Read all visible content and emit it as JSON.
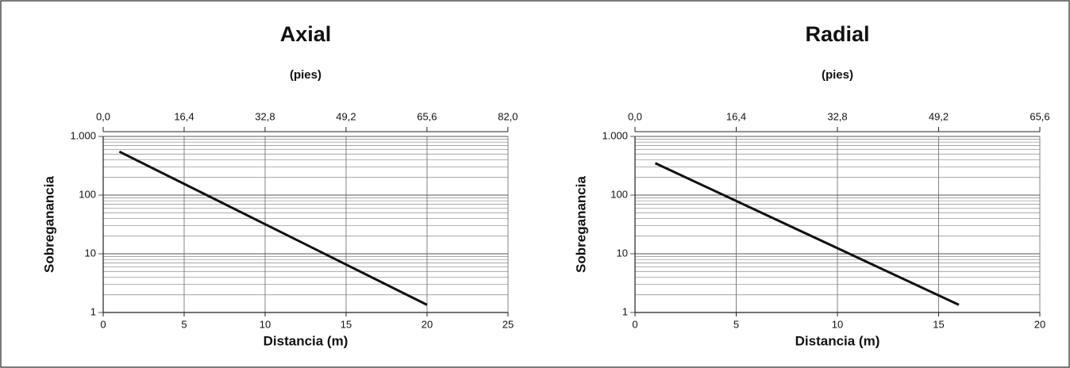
{
  "chart_data": [
    {
      "type": "line",
      "title": "Axial",
      "x2_label": "(pies)",
      "xlabel": "Distancia (m)",
      "ylabel": "Sobreganancia",
      "x": [
        1,
        20
      ],
      "series": [
        {
          "color": "#111111",
          "values": [
            550,
            1.35
          ]
        }
      ],
      "xlim": [
        0,
        25
      ],
      "xticks": [
        0,
        5,
        10,
        15,
        20,
        25
      ],
      "x2lim": [
        0,
        82.02
      ],
      "x2ticks": [
        {
          "value": 0,
          "label": "0,0"
        },
        {
          "value": 16.4,
          "label": "16,4"
        },
        {
          "value": 32.8,
          "label": "32,8"
        },
        {
          "value": 49.2,
          "label": "49,2"
        },
        {
          "value": 65.6,
          "label": "65,6"
        },
        {
          "value": 82,
          "label": "82,0"
        }
      ],
      "ylim": [
        1,
        1000
      ],
      "yticks": [
        {
          "value": 1000,
          "label": "1.000"
        },
        100,
        10,
        1
      ],
      "log_y": true,
      "grid": true,
      "minor_grid": true
    },
    {
      "type": "line",
      "title": "Radial",
      "x2_label": "(pies)",
      "xlabel": "Distancia (m)",
      "ylabel": "Sobreganancia",
      "x": [
        1,
        16
      ],
      "series": [
        {
          "color": "#111111",
          "values": [
            350,
            1.35
          ]
        }
      ],
      "xlim": [
        0,
        20
      ],
      "xticks": [
        0,
        5,
        10,
        15,
        20
      ],
      "x2lim": [
        0,
        65.6
      ],
      "x2ticks": [
        {
          "value": 0,
          "label": "0,0"
        },
        {
          "value": 16.4,
          "label": "16,4"
        },
        {
          "value": 32.8,
          "label": "32,8"
        },
        {
          "value": 49.2,
          "label": "49,2"
        },
        {
          "value": 65.6,
          "label": "65,6"
        }
      ],
      "ylim": [
        1,
        1000
      ],
      "yticks": [
        {
          "value": 1000,
          "label": "1.000"
        },
        100,
        10,
        1
      ],
      "log_y": true,
      "grid": true,
      "minor_grid": true
    }
  ]
}
